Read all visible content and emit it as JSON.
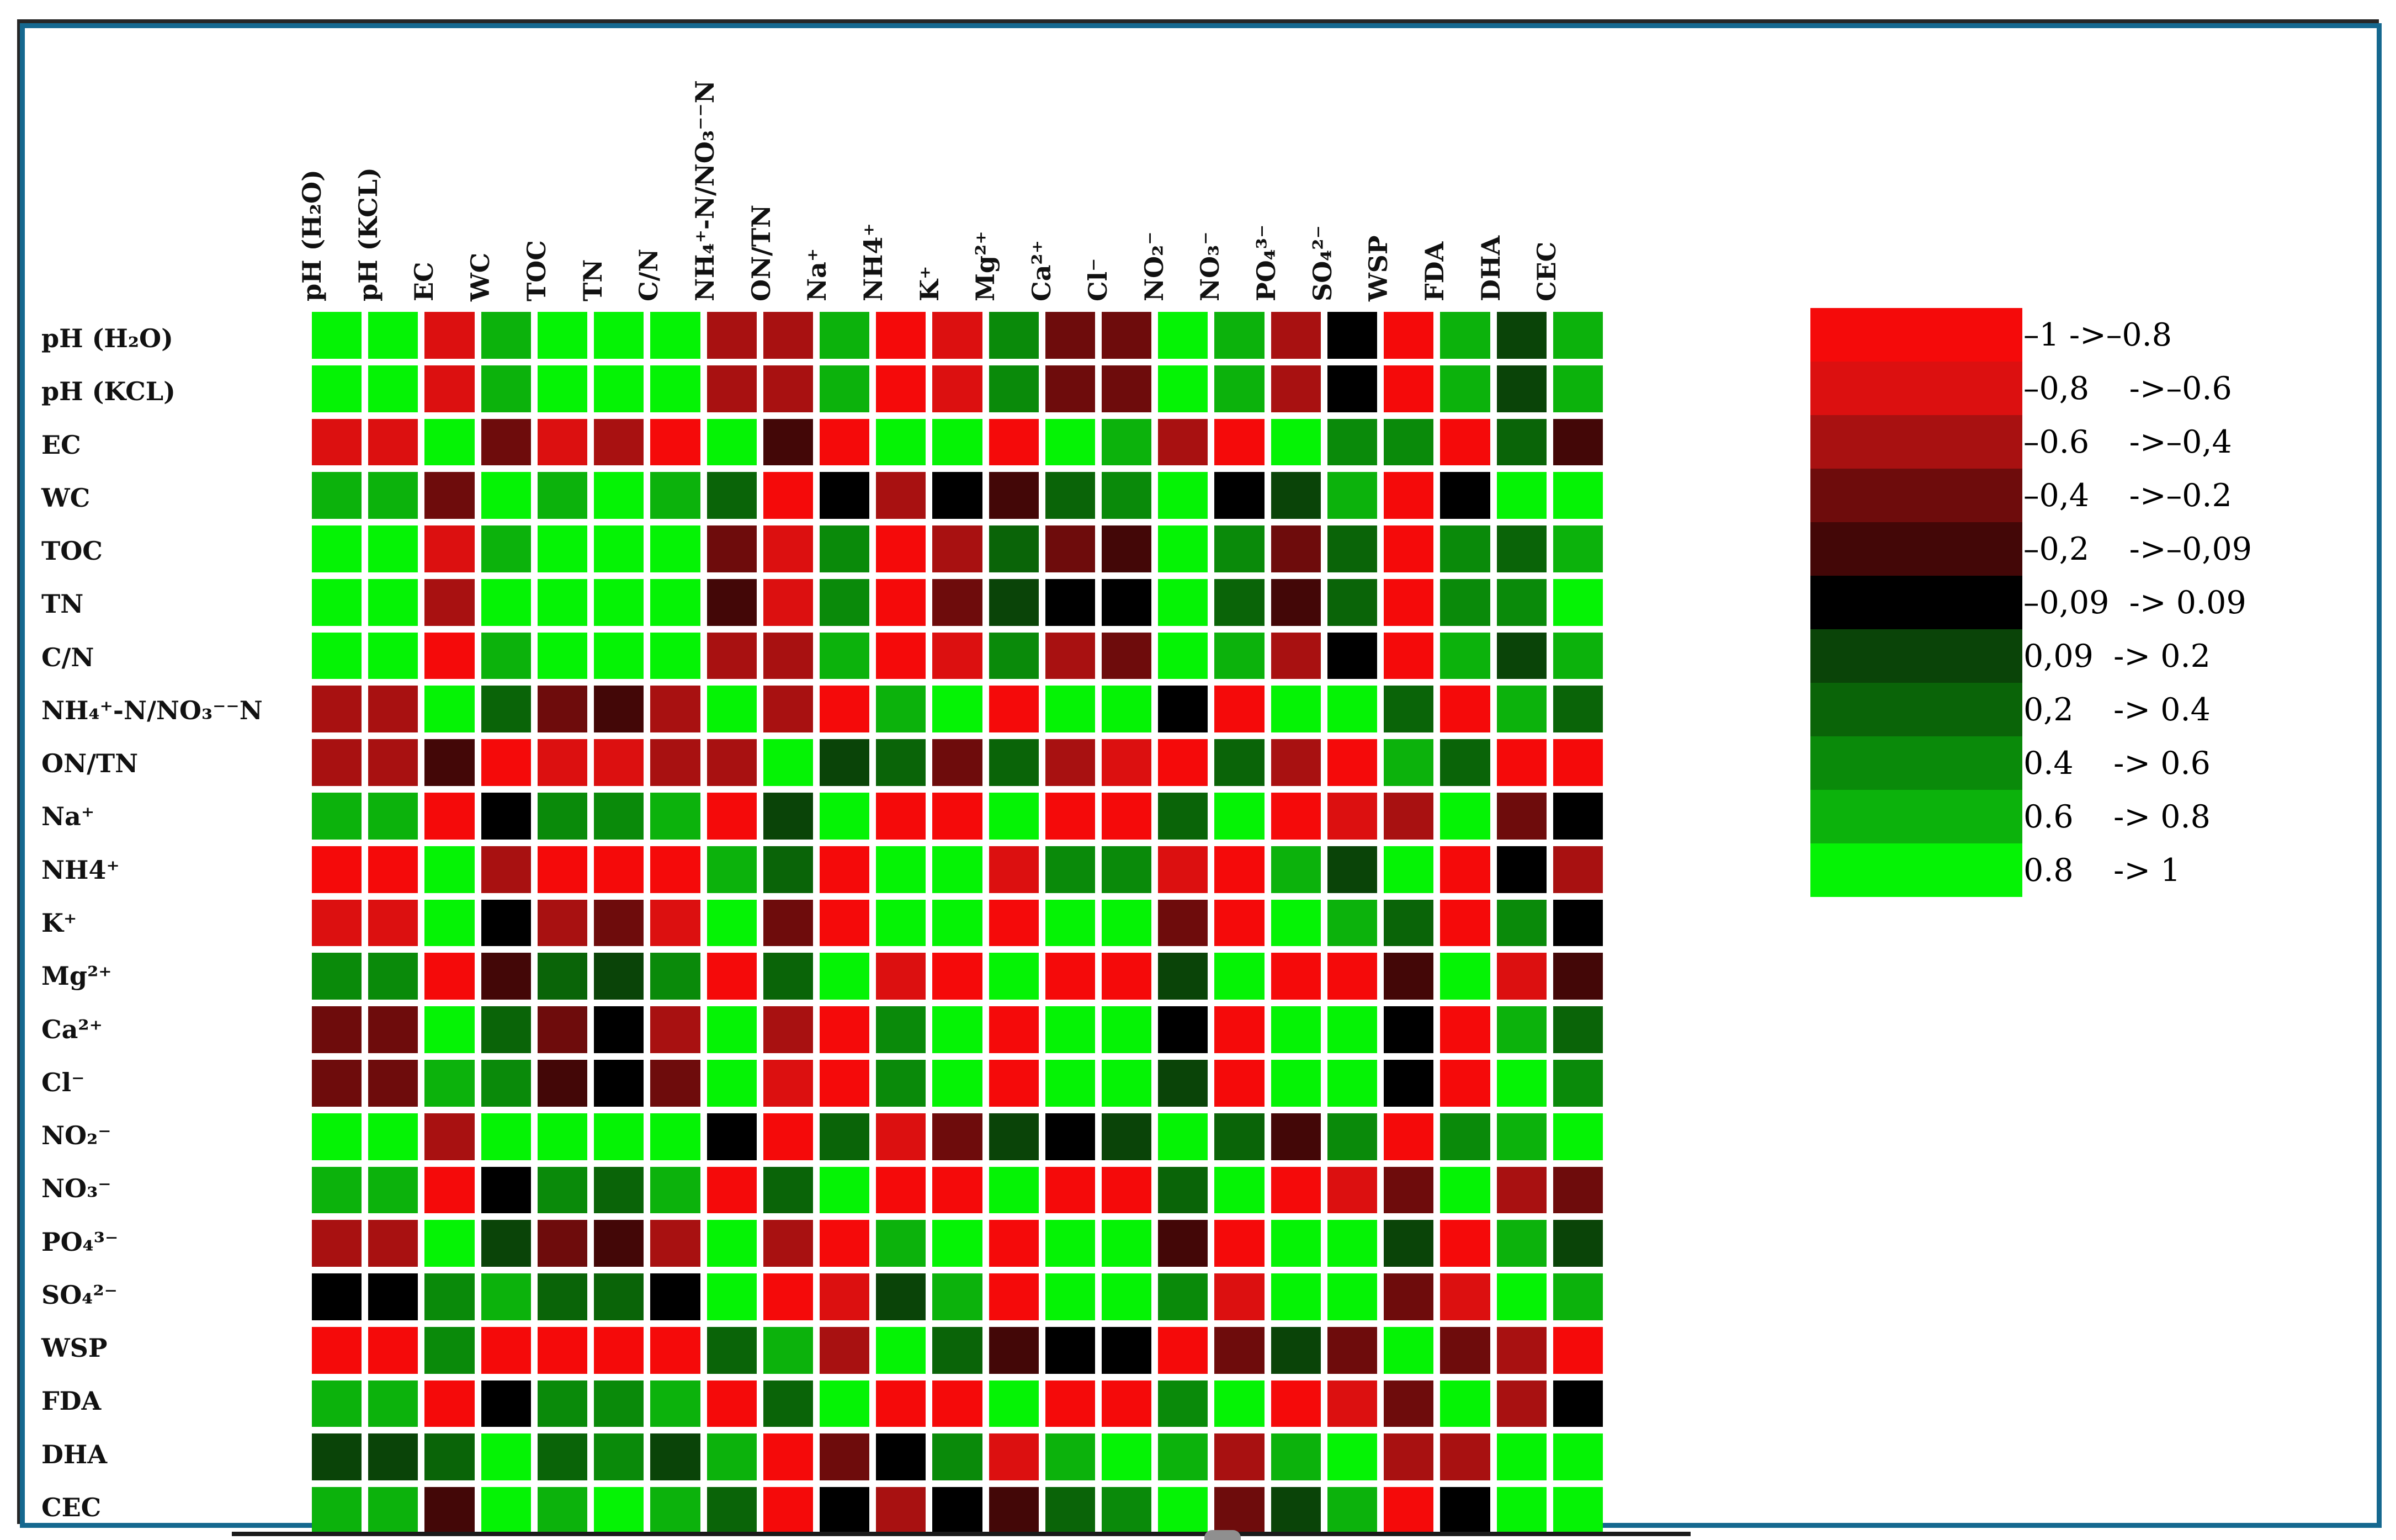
{
  "figure": {
    "kind": "correlation-heatmap-figure",
    "background": "#FFFFFF",
    "border_color": "#15688F",
    "axis_line_color": "#1A1A1A"
  },
  "chart_data": {
    "type": "heatmap",
    "title": "",
    "xlabel": "",
    "ylabel": "",
    "grid": "white gaps between square cells",
    "legend_position": "right",
    "categories": [
      "pH (H₂O)",
      "pH (KCL)",
      "EC",
      "WC",
      "TOC",
      "TN",
      "C/N",
      "NH₄⁺-N/NO₃⁻⁻N",
      "ON/TN",
      "Na⁺",
      "NH4⁺",
      "K⁺",
      "Mg²⁺",
      "Ca²⁺",
      "Cl⁻",
      "NO₂⁻",
      "NO₃⁻",
      "PO₄³⁻",
      "SO₄²⁻",
      "WSP",
      "FDA",
      "DHA",
      "CEC"
    ],
    "palette_bins": [
      {
        "index": 0,
        "range": "-1 -> -0.8",
        "color": "#F50A0A"
      },
      {
        "index": 1,
        "range": "-0.8 -> -0.6",
        "color": "#DC1010"
      },
      {
        "index": 2,
        "range": "-0.6 -> -0.4",
        "color": "#A81111"
      },
      {
        "index": 3,
        "range": "-0.4 -> -0.2",
        "color": "#6E0C0C"
      },
      {
        "index": 4,
        "range": "-0.2 -> -0.09",
        "color": "#430707"
      },
      {
        "index": 5,
        "range": "-0.09 -> 0.09",
        "color": "#000000"
      },
      {
        "index": 6,
        "range": "0.09 -> 0.2",
        "color": "#0A4408"
      },
      {
        "index": 7,
        "range": "0.2 -> 0.4",
        "color": "#0A6408"
      },
      {
        "index": 8,
        "range": "0.4 -> 0.6",
        "color": "#0A8A0A"
      },
      {
        "index": 9,
        "range": "0.6 -> 0.8",
        "color": "#0CB20C"
      },
      {
        "index": 10,
        "range": "0.8 -> 1",
        "color": "#05F305"
      }
    ],
    "legend_rows": [
      "–1 ->–0.8",
      "–0,8    ->–0.6",
      "–0.6    ->–0,4",
      "–0,4    ->–0.2",
      "–0,2    ->–0,09",
      "–0,09  -> 0.09",
      "0,09  -> 0.2",
      "0,2    -> 0.4",
      "0.4    -> 0.6",
      "0.6    -> 0.8",
      "0.8    -> 1"
    ],
    "bin_meaning": "matrix_bin_index[row][col] is an index into palette_bins; the bin range is the correlation-coefficient interval depicted by the cell colour. Rows and columns follow categories order.",
    "matrix_bin_index": [
      [
        10,
        10,
        1,
        9,
        10,
        10,
        10,
        2,
        2,
        9,
        0,
        1,
        8,
        3,
        3,
        10,
        9,
        2,
        5,
        0,
        9,
        6,
        9
      ],
      [
        10,
        10,
        1,
        9,
        10,
        10,
        10,
        2,
        2,
        9,
        0,
        1,
        8,
        3,
        3,
        10,
        9,
        2,
        5,
        0,
        9,
        6,
        9
      ],
      [
        1,
        1,
        10,
        3,
        1,
        2,
        0,
        10,
        4,
        0,
        10,
        10,
        0,
        10,
        9,
        2,
        0,
        10,
        8,
        8,
        0,
        7,
        4
      ],
      [
        9,
        9,
        3,
        10,
        9,
        10,
        9,
        7,
        0,
        5,
        2,
        5,
        4,
        7,
        8,
        10,
        5,
        6,
        9,
        0,
        5,
        10,
        10
      ],
      [
        10,
        10,
        1,
        9,
        10,
        10,
        10,
        3,
        1,
        8,
        0,
        2,
        7,
        3,
        4,
        10,
        8,
        3,
        7,
        0,
        8,
        7,
        9
      ],
      [
        10,
        10,
        2,
        10,
        10,
        10,
        10,
        4,
        1,
        8,
        0,
        3,
        6,
        5,
        5,
        10,
        7,
        4,
        7,
        0,
        8,
        8,
        10
      ],
      [
        10,
        10,
        0,
        9,
        10,
        10,
        10,
        2,
        2,
        9,
        0,
        1,
        8,
        2,
        3,
        10,
        9,
        2,
        5,
        0,
        9,
        6,
        9
      ],
      [
        2,
        2,
        10,
        7,
        3,
        4,
        2,
        10,
        2,
        0,
        9,
        10,
        0,
        10,
        10,
        5,
        0,
        10,
        10,
        7,
        0,
        9,
        7
      ],
      [
        2,
        2,
        4,
        0,
        1,
        1,
        2,
        2,
        10,
        6,
        7,
        3,
        7,
        2,
        1,
        0,
        7,
        2,
        0,
        9,
        7,
        0,
        0
      ],
      [
        9,
        9,
        0,
        5,
        8,
        8,
        9,
        0,
        6,
        10,
        0,
        0,
        10,
        0,
        0,
        7,
        10,
        0,
        1,
        2,
        10,
        3,
        5
      ],
      [
        0,
        0,
        10,
        2,
        0,
        0,
        0,
        9,
        7,
        0,
        10,
        10,
        1,
        8,
        8,
        1,
        0,
        9,
        6,
        10,
        0,
        5,
        2
      ],
      [
        1,
        1,
        10,
        5,
        2,
        3,
        1,
        10,
        3,
        0,
        10,
        10,
        0,
        10,
        10,
        3,
        0,
        10,
        9,
        7,
        0,
        8,
        5
      ],
      [
        8,
        8,
        0,
        4,
        7,
        6,
        8,
        0,
        7,
        10,
        1,
        0,
        10,
        0,
        0,
        6,
        10,
        0,
        0,
        4,
        10,
        1,
        4
      ],
      [
        3,
        3,
        10,
        7,
        3,
        5,
        2,
        10,
        2,
        0,
        8,
        10,
        0,
        10,
        10,
        5,
        0,
        10,
        10,
        5,
        0,
        9,
        7
      ],
      [
        3,
        3,
        9,
        8,
        4,
        5,
        3,
        10,
        1,
        0,
        8,
        10,
        0,
        10,
        10,
        6,
        0,
        10,
        10,
        5,
        0,
        10,
        8
      ],
      [
        10,
        10,
        2,
        10,
        10,
        10,
        10,
        5,
        0,
        7,
        1,
        3,
        6,
        5,
        6,
        10,
        7,
        4,
        8,
        0,
        8,
        9,
        10
      ],
      [
        9,
        9,
        0,
        5,
        8,
        7,
        9,
        0,
        7,
        10,
        0,
        0,
        10,
        0,
        0,
        7,
        10,
        0,
        1,
        3,
        10,
        2,
        3
      ],
      [
        2,
        2,
        10,
        6,
        3,
        4,
        2,
        10,
        2,
        0,
        9,
        10,
        0,
        10,
        10,
        4,
        0,
        10,
        10,
        6,
        0,
        9,
        6
      ],
      [
        5,
        5,
        8,
        9,
        7,
        7,
        5,
        10,
        0,
        1,
        6,
        9,
        0,
        10,
        10,
        8,
        1,
        10,
        10,
        3,
        1,
        10,
        9
      ],
      [
        0,
        0,
        8,
        0,
        0,
        0,
        0,
        7,
        9,
        2,
        10,
        7,
        4,
        5,
        5,
        0,
        3,
        6,
        3,
        10,
        3,
        2,
        0
      ],
      [
        9,
        9,
        0,
        5,
        8,
        8,
        9,
        0,
        7,
        10,
        0,
        0,
        10,
        0,
        0,
        8,
        10,
        0,
        1,
        3,
        10,
        2,
        5
      ],
      [
        6,
        6,
        7,
        10,
        7,
        8,
        6,
        9,
        0,
        3,
        5,
        8,
        1,
        9,
        10,
        9,
        2,
        9,
        10,
        2,
        2,
        10,
        10
      ],
      [
        9,
        9,
        4,
        10,
        9,
        10,
        9,
        7,
        0,
        5,
        2,
        5,
        4,
        7,
        8,
        10,
        3,
        6,
        9,
        0,
        5,
        10,
        10
      ]
    ]
  },
  "caption": {
    "partial_glyph": "top of a letter of the figure caption, cut off at the bottom edge"
  }
}
